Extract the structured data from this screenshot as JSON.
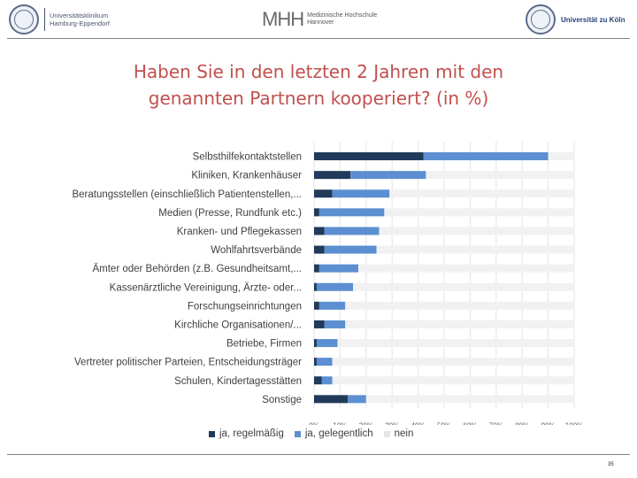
{
  "header": {
    "logo_left_text": "Universitätsklinikum\nHamburg-Eppendorf",
    "logo_mid_mark": "MHH",
    "logo_mid_text": "Medizinische Hochschule\nHannover",
    "logo_right_text": "Universität zu Köln"
  },
  "slide": {
    "title_line1": "Haben Sie in den letzten 2 Jahren mit den",
    "title_line2": "genannten Partnern kooperiert? (in %)",
    "page_number": "35"
  },
  "colors": {
    "regular": "#1f3a5a",
    "occasional": "#5b8fd1",
    "never": "#f1f1f1",
    "title": "#c0504d"
  },
  "chart_data": {
    "type": "bar",
    "orientation": "horizontal",
    "stacked": true,
    "categories": [
      "Selbsthilfekontaktstellen",
      "Kliniken, Krankenhäuser",
      "Beratungsstellen (einschließlich Patientenstellen,...",
      "Medien (Presse, Rundfunk etc.)",
      "Kranken- und Pflegekassen",
      "Wohlfahrtsverbände",
      "Ämter oder Behörden (z.B. Gesundheitsamt,...",
      "Kassenärztliche Vereinigung, Ärzte- oder...",
      "Forschungseinrichtungen",
      "Kirchliche Organisationen/...",
      "Betriebe, Firmen",
      "Vertreter politischer Parteien, Entscheidungsträger",
      "Schulen, Kindertagesstätten",
      "Sonstige"
    ],
    "series": [
      {
        "name": "ja, regelmäßig",
        "values": [
          42,
          14,
          7,
          2,
          4,
          4,
          2,
          1,
          2,
          4,
          1,
          1,
          3,
          13
        ]
      },
      {
        "name": "ja, gelegentlich",
        "values": [
          48,
          29,
          22,
          25,
          21,
          20,
          15,
          14,
          10,
          8,
          8,
          6,
          4,
          7
        ]
      },
      {
        "name": "nein",
        "values": [
          10,
          57,
          71,
          73,
          75,
          76,
          83,
          85,
          88,
          88,
          91,
          93,
          93,
          80
        ]
      }
    ],
    "x_ticks": [
      "0%",
      "10%",
      "20%",
      "30%",
      "40%",
      "50%",
      "60%",
      "70%",
      "80%",
      "90%",
      "100%"
    ],
    "xlim": [
      0,
      100
    ],
    "legend_position": "bottom",
    "grid": true
  }
}
